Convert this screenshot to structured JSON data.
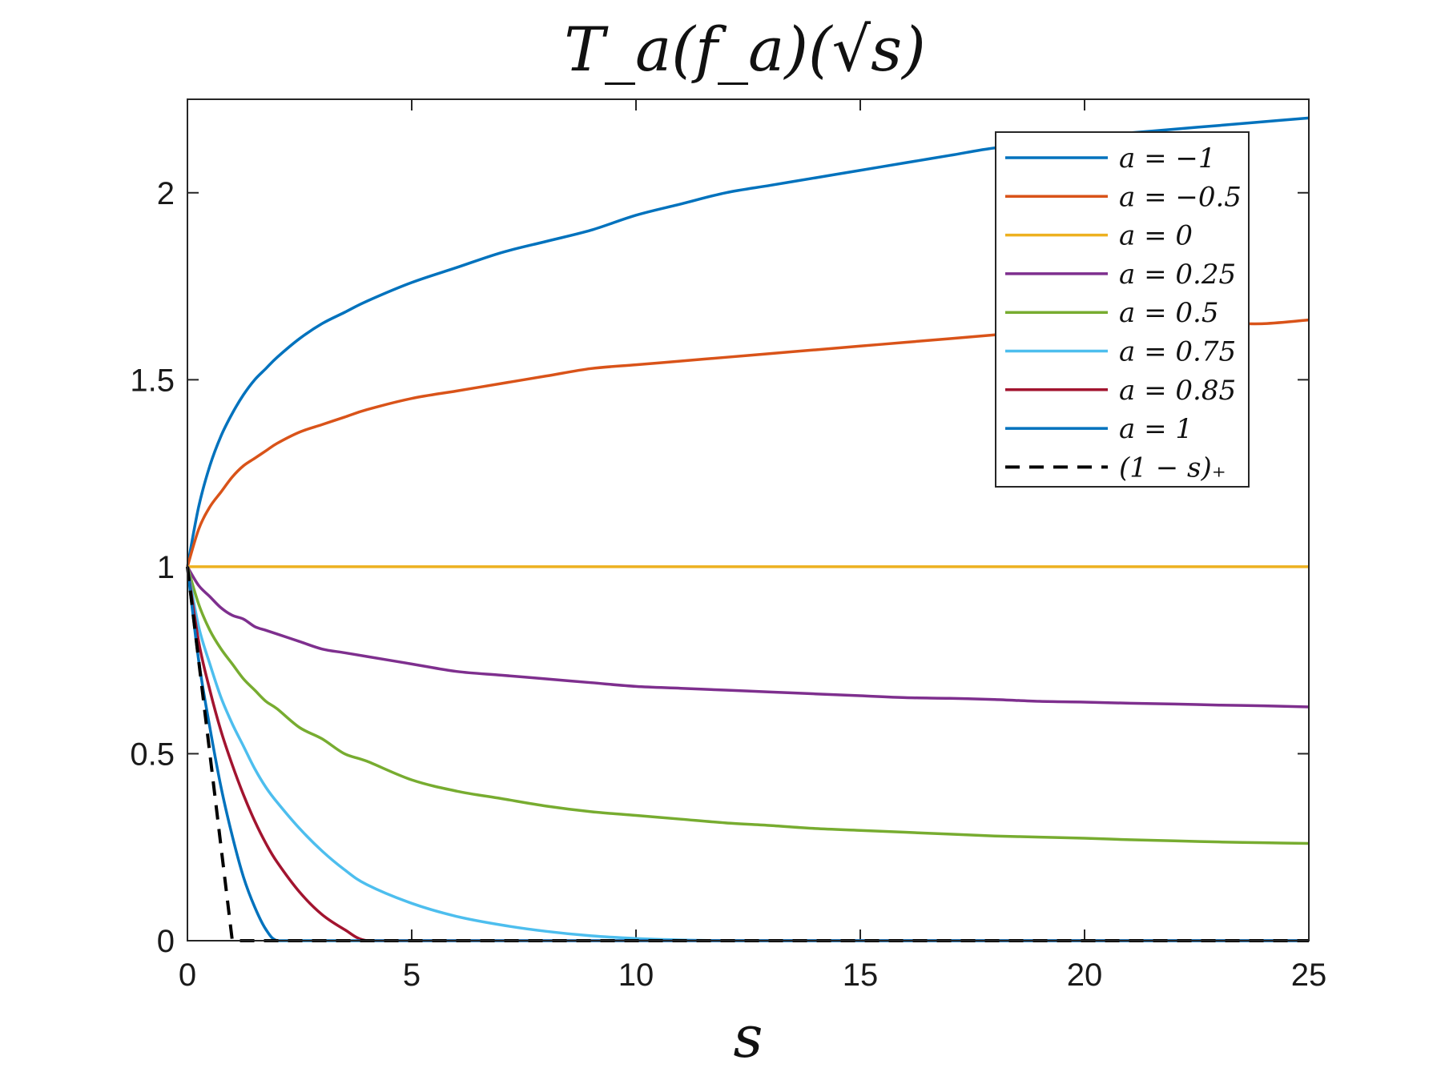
{
  "chart_data": {
    "type": "line",
    "title": "T_a(f_a)(√s)",
    "xlabel": "s",
    "ylabel": "",
    "xlim": [
      0,
      25
    ],
    "ylim": [
      0,
      2.25
    ],
    "xticks": [
      "0",
      "5",
      "10",
      "15",
      "20",
      "25"
    ],
    "yticks": [
      "0",
      "0.5",
      "1",
      "1.5",
      "2"
    ],
    "grid": false,
    "legend_position": "top-right",
    "x": [
      0,
      0.25,
      0.5,
      0.75,
      1,
      1.25,
      1.5,
      1.75,
      2,
      2.5,
      3,
      3.5,
      4,
      5,
      6,
      7,
      8,
      9,
      10,
      11,
      12,
      13,
      14,
      15,
      16,
      17,
      18,
      19,
      20,
      21,
      22,
      23,
      24,
      25
    ],
    "series": [
      {
        "name": "a = −1",
        "color": "#0072BD",
        "dash": false,
        "values": [
          1,
          1.16,
          1.27,
          1.35,
          1.41,
          1.46,
          1.5,
          1.53,
          1.56,
          1.61,
          1.65,
          1.68,
          1.71,
          1.76,
          1.8,
          1.84,
          1.87,
          1.9,
          1.94,
          1.97,
          2.0,
          2.02,
          2.04,
          2.06,
          2.08,
          2.1,
          2.12,
          2.13,
          2.15,
          2.16,
          2.17,
          2.18,
          2.19,
          2.2
        ]
      },
      {
        "name": "a = −0.5",
        "color": "#D95319",
        "dash": false,
        "values": [
          1,
          1.1,
          1.16,
          1.2,
          1.24,
          1.27,
          1.29,
          1.31,
          1.33,
          1.36,
          1.38,
          1.4,
          1.42,
          1.45,
          1.47,
          1.49,
          1.51,
          1.53,
          1.54,
          1.55,
          1.56,
          1.57,
          1.58,
          1.59,
          1.6,
          1.61,
          1.62,
          1.63,
          1.63,
          1.64,
          1.64,
          1.65,
          1.65,
          1.66
        ]
      },
      {
        "name": "a = 0",
        "color": "#EDB120",
        "dash": false,
        "values": [
          1,
          1,
          1,
          1,
          1,
          1,
          1,
          1,
          1,
          1,
          1,
          1,
          1,
          1,
          1,
          1,
          1,
          1,
          1,
          1,
          1,
          1,
          1,
          1,
          1,
          1,
          1,
          1,
          1,
          1,
          1,
          1,
          1,
          1
        ]
      },
      {
        "name": "a = 0.25",
        "color": "#7E2F8E",
        "dash": false,
        "values": [
          1,
          0.95,
          0.92,
          0.89,
          0.87,
          0.86,
          0.84,
          0.83,
          0.82,
          0.8,
          0.78,
          0.77,
          0.76,
          0.74,
          0.72,
          0.71,
          0.7,
          0.69,
          0.68,
          0.675,
          0.67,
          0.665,
          0.66,
          0.655,
          0.65,
          0.648,
          0.645,
          0.64,
          0.638,
          0.635,
          0.633,
          0.63,
          0.628,
          0.625
        ]
      },
      {
        "name": "a = 0.5",
        "color": "#77AC30",
        "dash": false,
        "values": [
          1,
          0.9,
          0.83,
          0.78,
          0.74,
          0.7,
          0.67,
          0.64,
          0.62,
          0.57,
          0.54,
          0.5,
          0.48,
          0.43,
          0.4,
          0.38,
          0.36,
          0.345,
          0.335,
          0.325,
          0.315,
          0.308,
          0.3,
          0.295,
          0.29,
          0.285,
          0.28,
          0.277,
          0.274,
          0.27,
          0.267,
          0.264,
          0.262,
          0.26
        ]
      },
      {
        "name": "a = 0.75",
        "color": "#4DBEEE",
        "dash": false,
        "values": [
          1,
          0.84,
          0.74,
          0.65,
          0.58,
          0.52,
          0.46,
          0.41,
          0.37,
          0.3,
          0.24,
          0.19,
          0.15,
          0.1,
          0.065,
          0.042,
          0.025,
          0.013,
          0.006,
          0.002,
          0,
          0,
          0,
          0,
          0,
          0,
          0,
          0,
          0,
          0,
          0,
          0,
          0,
          0
        ]
      },
      {
        "name": "a = 0.85",
        "color": "#A2142F",
        "dash": false,
        "values": [
          1,
          0.8,
          0.67,
          0.56,
          0.47,
          0.39,
          0.32,
          0.26,
          0.21,
          0.13,
          0.07,
          0.03,
          0,
          0,
          0,
          0,
          0,
          0,
          0,
          0,
          0,
          0,
          0,
          0,
          0,
          0,
          0,
          0,
          0,
          0,
          0,
          0,
          0,
          0
        ]
      },
      {
        "name": "a = 1",
        "color": "#0072BD",
        "dash": false,
        "values": [
          1,
          0.75,
          0.57,
          0.41,
          0.28,
          0.17,
          0.09,
          0.03,
          0,
          0,
          0,
          0,
          0,
          0,
          0,
          0,
          0,
          0,
          0,
          0,
          0,
          0,
          0,
          0,
          0,
          0,
          0,
          0,
          0,
          0,
          0,
          0,
          0,
          0
        ]
      },
      {
        "name": "(1 − s)₊",
        "color": "#000000",
        "dash": true,
        "values": [
          1,
          0.75,
          0.5,
          0.25,
          0,
          0,
          0,
          0,
          0,
          0,
          0,
          0,
          0,
          0,
          0,
          0,
          0,
          0,
          0,
          0,
          0,
          0,
          0,
          0,
          0,
          0,
          0,
          0,
          0,
          0,
          0,
          0,
          0,
          0
        ]
      }
    ]
  }
}
